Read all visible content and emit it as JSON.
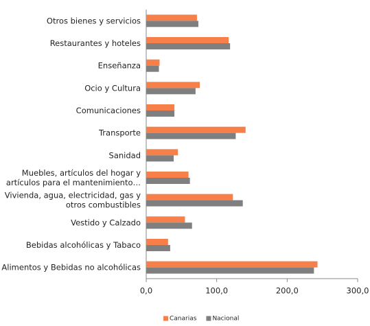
{
  "chart_data": {
    "type": "hbar",
    "categories": [
      "Otros bienes y servicios",
      "Restaurantes y hoteles",
      "Enseñanza",
      "Ocio y Cultura",
      "Comunicaciones",
      "Transporte",
      "Sanidad",
      "Muebles, artículos del hogar y\nartículos para el mantenimiento…",
      "Vivienda, agua, electricidad, gas y\notros combustibles",
      "Vestido y Calzado",
      "Bebidas alcohólicas y Tabaco",
      "Alimentos y Bebidas no alcohólicas"
    ],
    "series": [
      {
        "name": "Canarias",
        "color": "#f7804a",
        "values": [
          72,
          117,
          19,
          76,
          40,
          141,
          45,
          60,
          123,
          55,
          31,
          243
        ]
      },
      {
        "name": "Nacional",
        "color": "#7f7f7f",
        "values": [
          74,
          119,
          18,
          70,
          40,
          127,
          39,
          62,
          137,
          65,
          34,
          238
        ]
      }
    ],
    "xlim": [
      0,
      300
    ],
    "xticks": [
      {
        "value": 0,
        "label": "0,0"
      },
      {
        "value": 100,
        "label": "100,0"
      },
      {
        "value": 200,
        "label": "200,0"
      },
      {
        "value": 300,
        "label": "300,0"
      }
    ],
    "legend": "bottom"
  }
}
